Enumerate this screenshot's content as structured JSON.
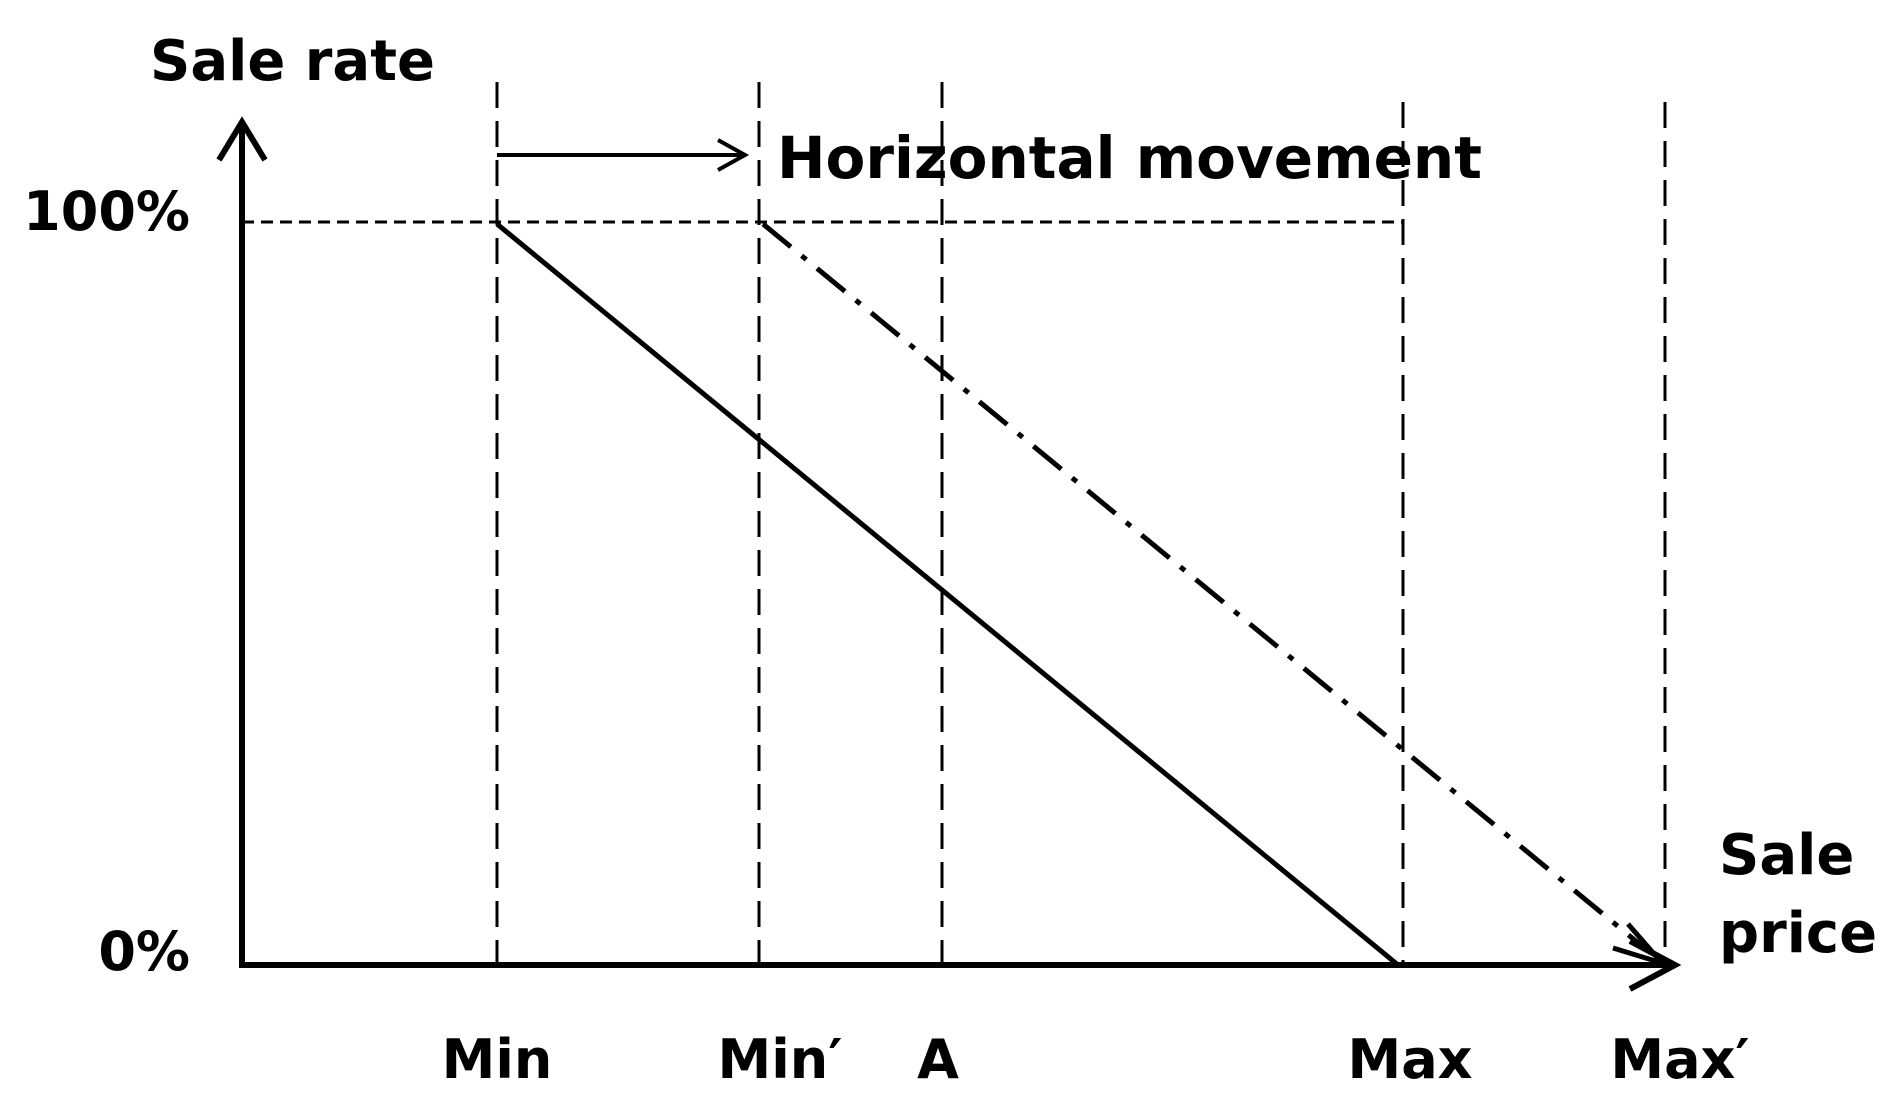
{
  "diagram": {
    "y_axis_label": "Sale rate",
    "x_axis_label_line1": "Sale",
    "x_axis_label_line2": "price",
    "y_ticks": [
      "100%",
      "0%"
    ],
    "x_ticks": [
      "Min",
      "Min′",
      "A",
      "Max",
      "Max′"
    ],
    "annotation": "Horizontal movement"
  },
  "chart_data": {
    "type": "line",
    "x_axis_label": "Sale price",
    "y_axis_label": "Sale rate",
    "x_categories": [
      "Min",
      "Min′",
      "A",
      "Max",
      "Max′"
    ],
    "y_ticks": [
      "0%",
      "100%"
    ],
    "series": [
      {
        "style": "solid",
        "points": [
          [
            "Min",
            "100%"
          ],
          [
            "Max",
            "0%"
          ]
        ]
      },
      {
        "style": "dash-dot",
        "points": [
          [
            "Min′",
            "100%"
          ],
          [
            "Max′",
            "0%"
          ]
        ]
      }
    ],
    "annotations": [
      {
        "text": "Horizontal movement",
        "arrow_from": "Min",
        "arrow_to": "Min′"
      }
    ],
    "guides": {
      "vertical_dashed_at": [
        "Min",
        "Min′",
        "A",
        "Max",
        "Max′"
      ],
      "horizontal_dashed_at": "100%"
    }
  }
}
